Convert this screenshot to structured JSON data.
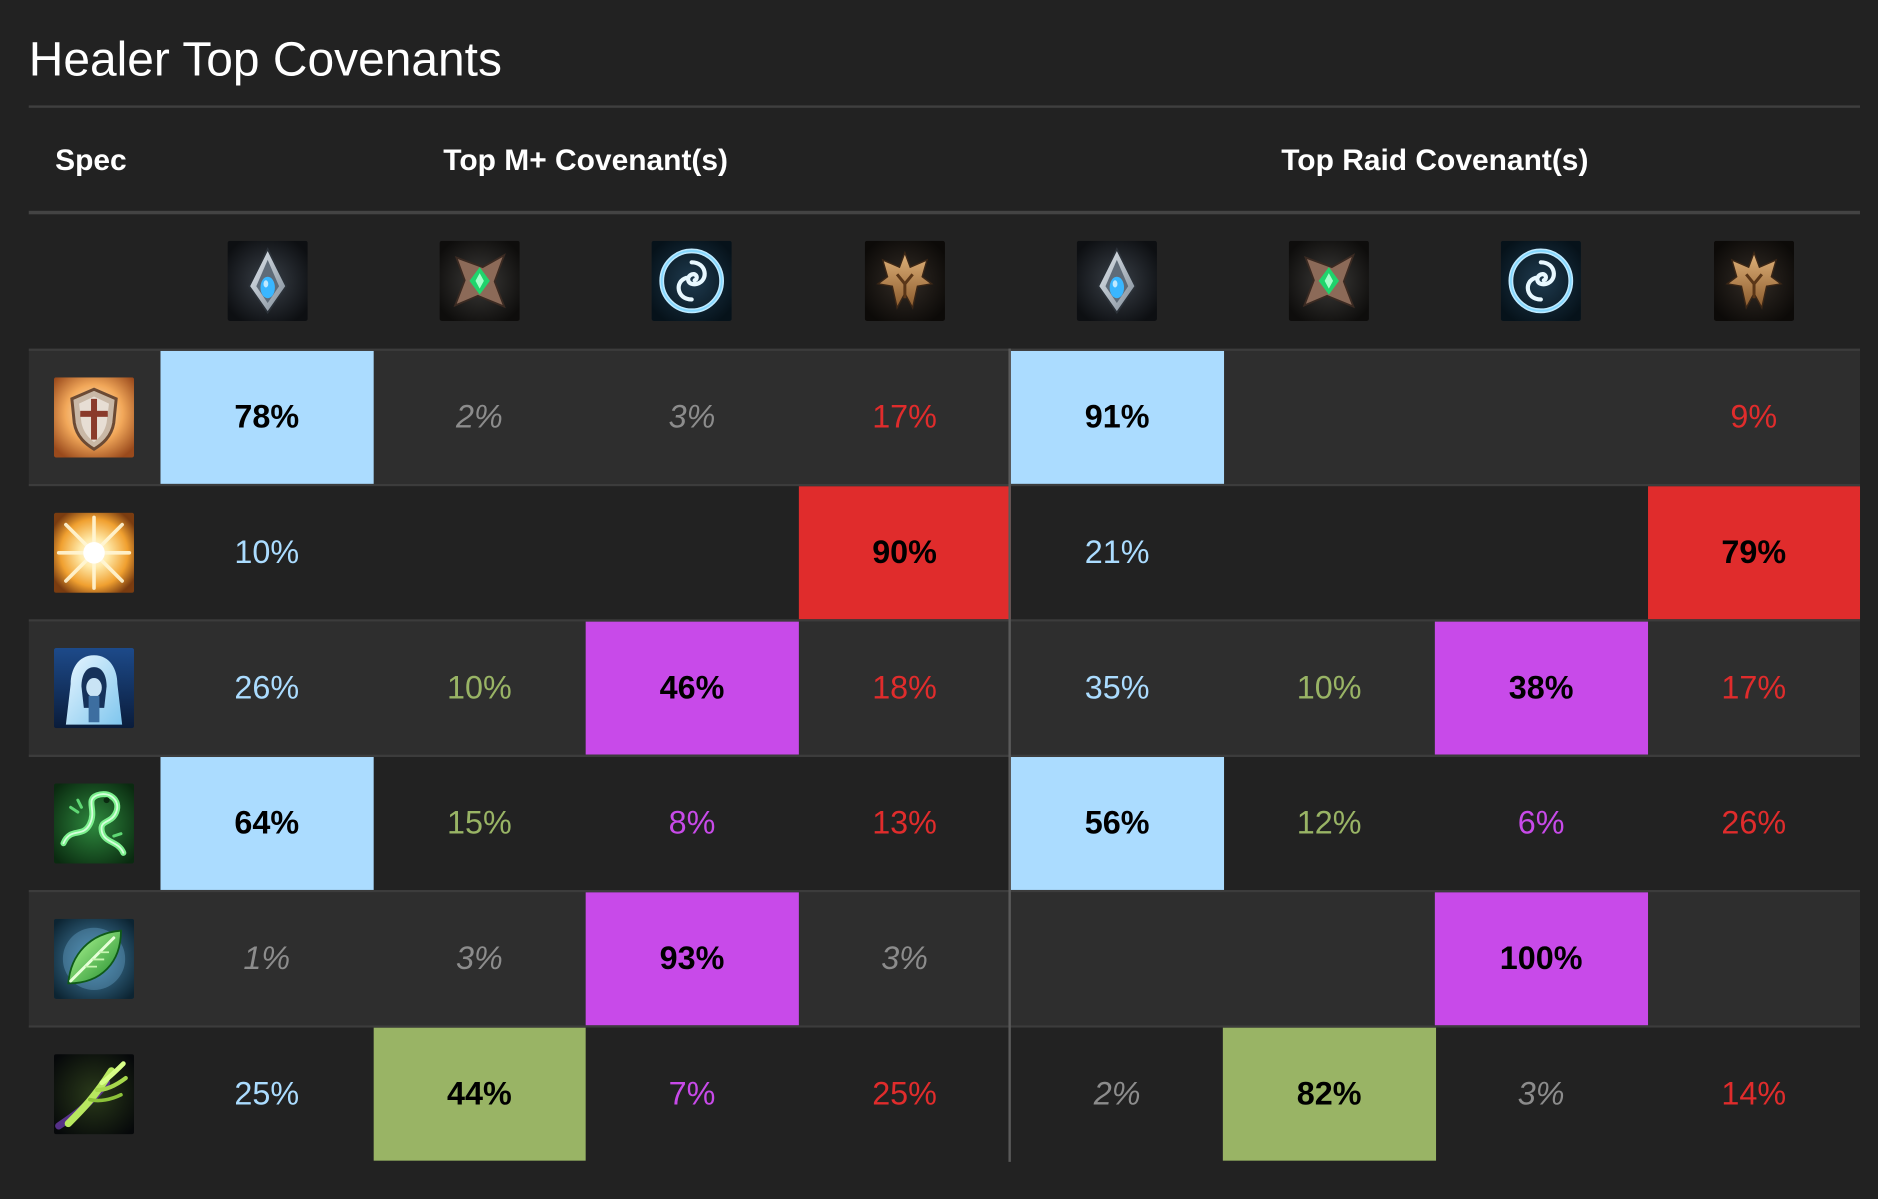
{
  "title": "Healer Top Covenants",
  "headers": {
    "spec": "Spec",
    "mplus": "Top M+ Covenant(s)",
    "raid": "Top Raid Covenant(s)"
  },
  "covenants": [
    {
      "key": "kyrian",
      "icon": "kyrian-icon",
      "color": "#abdcff"
    },
    {
      "key": "necrolord",
      "icon": "necrolord-icon",
      "color": "#9bb865"
    },
    {
      "key": "night_fae",
      "icon": "night-fae-icon",
      "color": "#c84ae9"
    },
    {
      "key": "venthyr",
      "icon": "venthyr-icon",
      "color": "#e03030"
    }
  ],
  "colors": {
    "kyrian": "#abdcff",
    "necrolord": "#99b465",
    "night_fae": "#c84ae9",
    "venthyr": "#e02c2c",
    "minor_text": "#8c8c8c"
  },
  "chart_data": {
    "type": "table",
    "title": "Healer Top Covenants",
    "groups": [
      "Top M+ Covenant(s)",
      "Top Raid Covenant(s)"
    ],
    "columns": [
      "Kyrian",
      "Necrolord",
      "Night Fae",
      "Venthyr"
    ],
    "rows": [
      {
        "spec_icon": "holy-paladin-icon",
        "mplus": [
          "78%",
          "2%",
          "3%",
          "17%"
        ],
        "raid": [
          "91%",
          "",
          "",
          "9%"
        ]
      },
      {
        "spec_icon": "holy-priest-icon",
        "mplus": [
          "10%",
          "",
          "",
          "90%"
        ],
        "raid": [
          "21%",
          "",
          "",
          "79%"
        ]
      },
      {
        "spec_icon": "discipline-priest-icon",
        "mplus": [
          "26%",
          "10%",
          "46%",
          "18%"
        ],
        "raid": [
          "35%",
          "10%",
          "38%",
          "17%"
        ]
      },
      {
        "spec_icon": "mistweaver-monk-icon",
        "mplus": [
          "64%",
          "15%",
          "8%",
          "13%"
        ],
        "raid": [
          "56%",
          "12%",
          "6%",
          "26%"
        ]
      },
      {
        "spec_icon": "restoration-druid-icon",
        "mplus": [
          "1%",
          "3%",
          "93%",
          "3%"
        ],
        "raid": [
          "",
          "",
          "100%",
          ""
        ]
      },
      {
        "spec_icon": "restoration-shaman-icon",
        "mplus": [
          "25%",
          "44%",
          "7%",
          "25%"
        ],
        "raid": [
          "2%",
          "82%",
          "3%",
          "14%"
        ]
      }
    ]
  }
}
